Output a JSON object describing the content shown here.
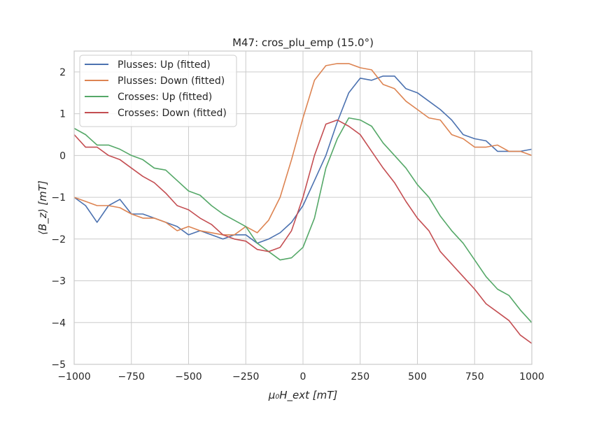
{
  "chart_data": {
    "type": "line",
    "title": "M47: cros_plu_emp (15.0$^\\circ$)",
    "title_display": "M47: cros_plu_emp (15.0°)",
    "xlabel": "μ₀H_ext [mT]",
    "ylabel": "⟨B_z⟩ [mT]",
    "xlim": [
      -1000,
      1000
    ],
    "ylim": [
      -5,
      2.5
    ],
    "xticks": [
      -1000,
      -750,
      -500,
      -250,
      0,
      250,
      500,
      750,
      1000
    ],
    "xtick_labels": [
      "−1000",
      "−750",
      "−500",
      "−250",
      "0",
      "250",
      "500",
      "750",
      "1000"
    ],
    "yticks": [
      -5,
      -4,
      -3,
      -2,
      -1,
      0,
      1,
      2
    ],
    "ytick_labels": [
      "−5",
      "−4",
      "−3",
      "−2",
      "−1",
      "0",
      "1",
      "2"
    ],
    "grid": true,
    "legend_position": "top-left",
    "x": [
      -1000,
      -950,
      -900,
      -850,
      -800,
      -750,
      -700,
      -650,
      -600,
      -550,
      -500,
      -450,
      -400,
      -350,
      -300,
      -250,
      -200,
      -150,
      -100,
      -50,
      0,
      50,
      100,
      150,
      200,
      250,
      300,
      350,
      400,
      450,
      500,
      550,
      600,
      650,
      700,
      750,
      800,
      850,
      900,
      950,
      1000
    ],
    "series": [
      {
        "name": "Plusses: Up (fitted)",
        "color": "#4c72b0",
        "values": [
          -1.0,
          -1.2,
          -1.6,
          -1.2,
          -1.05,
          -1.4,
          -1.4,
          -1.5,
          -1.6,
          -1.7,
          -1.9,
          -1.8,
          -1.9,
          -2.0,
          -1.9,
          -1.9,
          -2.1,
          -2.0,
          -1.85,
          -1.6,
          -1.2,
          -0.6,
          0.0,
          0.8,
          1.5,
          1.85,
          1.8,
          1.9,
          1.9,
          1.6,
          1.5,
          1.3,
          1.1,
          0.85,
          0.5,
          0.4,
          0.35,
          0.1,
          0.1,
          0.1,
          0.15
        ]
      },
      {
        "name": "Plusses: Down (fitted)",
        "color": "#dd8452",
        "values": [
          -1.0,
          -1.1,
          -1.2,
          -1.2,
          -1.25,
          -1.4,
          -1.5,
          -1.5,
          -1.6,
          -1.8,
          -1.7,
          -1.8,
          -1.85,
          -1.9,
          -1.9,
          -1.7,
          -1.85,
          -1.55,
          -1.0,
          -0.1,
          0.9,
          1.8,
          2.15,
          2.2,
          2.2,
          2.1,
          2.05,
          1.7,
          1.6,
          1.3,
          1.1,
          0.9,
          0.85,
          0.5,
          0.4,
          0.2,
          0.2,
          0.25,
          0.1,
          0.1,
          0.0
        ]
      },
      {
        "name": "Crosses: Up (fitted)",
        "color": "#55a868",
        "values": [
          0.65,
          0.5,
          0.25,
          0.25,
          0.15,
          0.0,
          -0.1,
          -0.3,
          -0.35,
          -0.6,
          -0.85,
          -0.95,
          -1.2,
          -1.4,
          -1.55,
          -1.7,
          -2.1,
          -2.3,
          -2.5,
          -2.45,
          -2.2,
          -1.5,
          -0.3,
          0.4,
          0.9,
          0.85,
          0.7,
          0.3,
          0.0,
          -0.3,
          -0.7,
          -1.0,
          -1.45,
          -1.8,
          -2.1,
          -2.5,
          -2.9,
          -3.2,
          -3.35,
          -3.7,
          -4.0
        ]
      },
      {
        "name": "Crosses: Down (fitted)",
        "color": "#c44e52",
        "values": [
          0.5,
          0.2,
          0.2,
          0.0,
          -0.1,
          -0.3,
          -0.5,
          -0.65,
          -0.9,
          -1.2,
          -1.3,
          -1.5,
          -1.65,
          -1.9,
          -2.0,
          -2.05,
          -2.25,
          -2.3,
          -2.2,
          -1.8,
          -1.0,
          0.0,
          0.75,
          0.85,
          0.7,
          0.5,
          0.1,
          -0.3,
          -0.65,
          -1.1,
          -1.5,
          -1.8,
          -2.3,
          -2.6,
          -2.9,
          -3.2,
          -3.55,
          -3.75,
          -3.95,
          -4.3,
          -4.5
        ]
      }
    ]
  }
}
